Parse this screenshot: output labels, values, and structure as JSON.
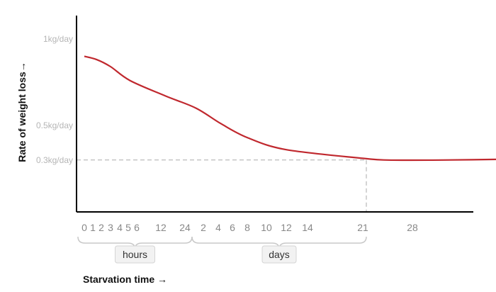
{
  "chart_data": {
    "type": "line",
    "xlabel": "Starvation time →",
    "ylabel": "Rate of weight loss→",
    "x_tick_labels": [
      "0",
      "1",
      "2",
      "3",
      "4",
      "5",
      "6",
      "12",
      "24",
      "2",
      "4",
      "6",
      "8",
      "10",
      "12",
      "14",
      "21",
      "28"
    ],
    "y_ticks": [
      {
        "value": 1.0,
        "label": "1kg/day"
      },
      {
        "value": 0.5,
        "label": "0.5kg/day"
      },
      {
        "value": 0.3,
        "label": "0.3kg/day"
      }
    ],
    "groups": [
      {
        "label": "hours",
        "from_tick": 0,
        "to_tick": 8
      },
      {
        "label": "days",
        "from_tick": 8,
        "to_tick": 16
      }
    ],
    "reference_line": {
      "x_tick": 16,
      "y": 0.3
    },
    "ylim": [
      0,
      1.1
    ],
    "line_color": "#c0282e",
    "series": [
      {
        "points": [
          {
            "t": 0,
            "y": 0.9
          },
          {
            "t": 1.5,
            "y": 0.88
          },
          {
            "t": 3,
            "y": 0.84
          },
          {
            "t": 5.2,
            "y": 0.76
          },
          {
            "t": 7.2,
            "y": 0.67
          },
          {
            "t": 8.6,
            "y": 0.6
          },
          {
            "t": 10.2,
            "y": 0.51
          },
          {
            "t": 12,
            "y": 0.43
          },
          {
            "t": 14,
            "y": 0.36
          },
          {
            "t": 16,
            "y": 0.31
          },
          {
            "t": 16.5,
            "y": 0.3
          },
          {
            "t": 17.6,
            "y": 0.3
          },
          {
            "t": 19,
            "y": 0.305
          }
        ]
      }
    ]
  }
}
